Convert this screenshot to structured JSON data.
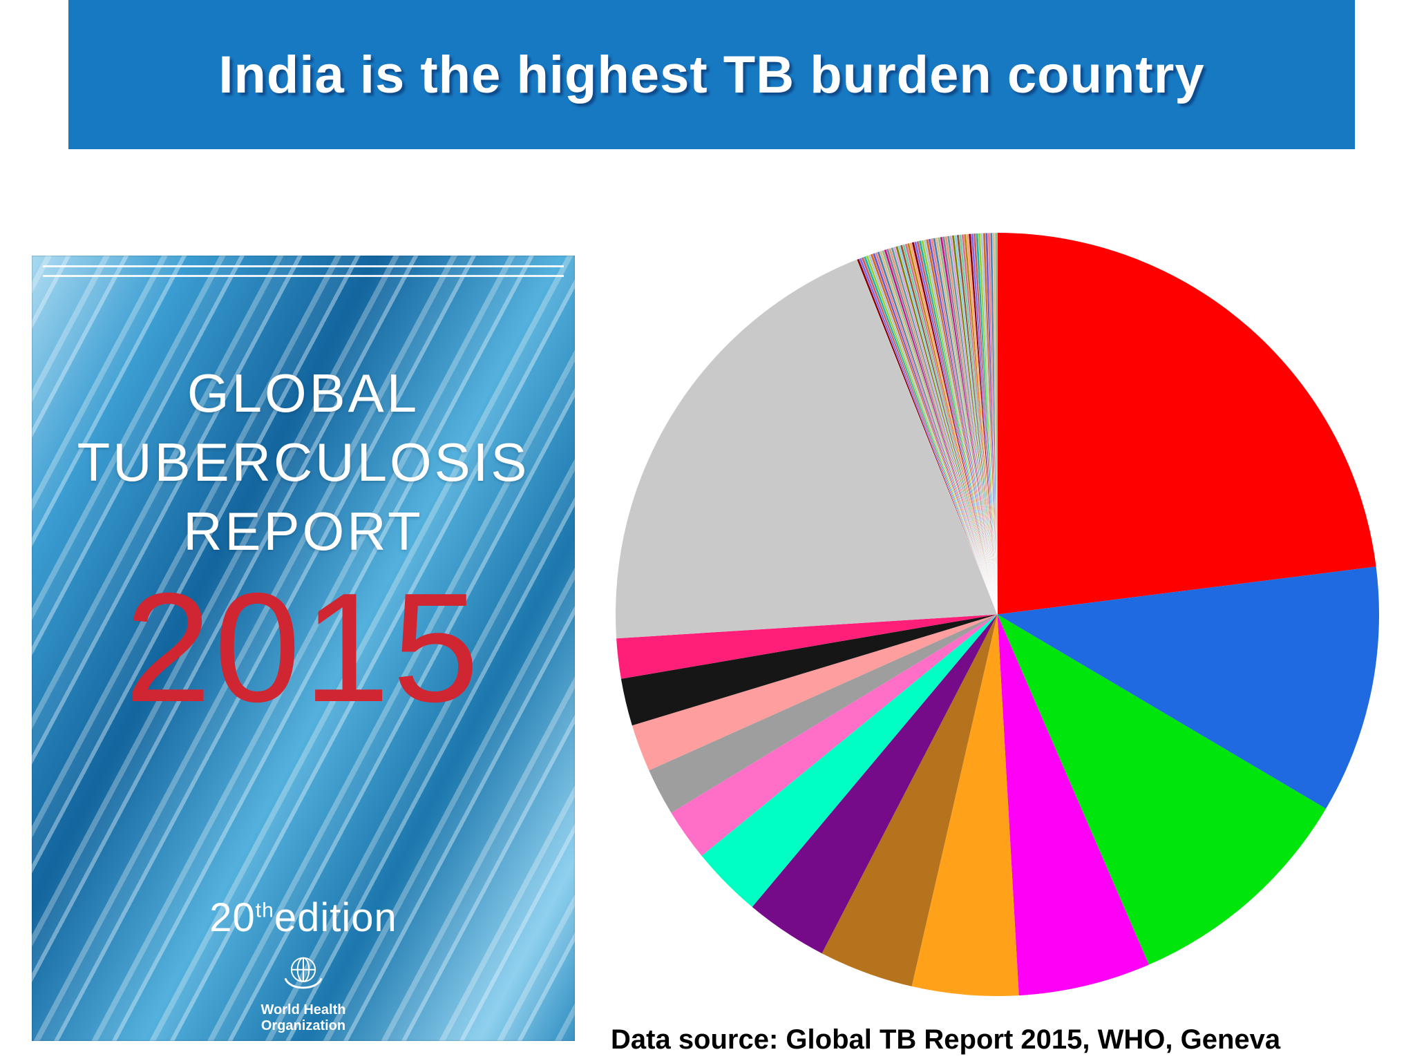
{
  "title": {
    "text": "India is the highest TB burden country"
  },
  "cover": {
    "title_line1": "GLOBAL",
    "title_line2": "TUBERCULOSIS",
    "title_line3": "REPORT",
    "year": "2015",
    "edition_number": "20",
    "edition_sup": "th",
    "edition_word": "edition",
    "who_line1": "World Health",
    "who_line2": "Organization"
  },
  "caption": {
    "text": "Data source: Global TB Report 2015, WHO, Geneva"
  },
  "colors": {
    "title_bar": "#1779c2",
    "cover_year_red": "#cf2631"
  },
  "chart_data": {
    "type": "pie",
    "title": "",
    "legend": "none",
    "labels_shown": false,
    "start_angle_deg": 0,
    "direction": "clockwise",
    "slices": [
      {
        "name": "red-largest",
        "color": "#fe0000",
        "percent": 23.0
      },
      {
        "name": "royal-blue",
        "color": "#1f6ae0",
        "percent": 10.5
      },
      {
        "name": "bright-green",
        "color": "#00e50b",
        "percent": 10.0
      },
      {
        "name": "magenta",
        "color": "#ff00f6",
        "percent": 5.6
      },
      {
        "name": "orange",
        "color": "#ffa21a",
        "percent": 4.5
      },
      {
        "name": "dark-goldenrod",
        "color": "#b5731d",
        "percent": 4.0
      },
      {
        "name": "purple",
        "color": "#760b8a",
        "percent": 3.5
      },
      {
        "name": "turquoise",
        "color": "#00ffc3",
        "percent": 3.0
      },
      {
        "name": "hot-pink",
        "color": "#ff6ec7",
        "percent": 2.2
      },
      {
        "name": "gray",
        "color": "#9e9e9e",
        "percent": 2.0
      },
      {
        "name": "salmon",
        "color": "#ff9e9e",
        "percent": 2.0
      },
      {
        "name": "black",
        "color": "#161616",
        "percent": 2.0
      },
      {
        "name": "deep-pink",
        "color": "#ff1f78",
        "percent": 1.7
      },
      {
        "name": "light-gray-large",
        "color": "#c9c9c9",
        "percent": 20.0
      }
    ],
    "slivers": {
      "total_percent": 6.0,
      "count": 60,
      "palette": [
        "#8b0000",
        "#7b68ee",
        "#cd5c5c",
        "#20b2aa",
        "#9acd32",
        "#b0c4de",
        "#d2691e",
        "#6a5acd",
        "#f08080",
        "#4682b4",
        "#deb887",
        "#8fbc8f",
        "#c71585",
        "#778899",
        "#e9967a",
        "#5f9ea0",
        "#dda0dd",
        "#808000",
        "#87ceeb",
        "#a0522d",
        "#66cdaa",
        "#db7093",
        "#b8860b",
        "#ffa07a"
      ]
    }
  }
}
